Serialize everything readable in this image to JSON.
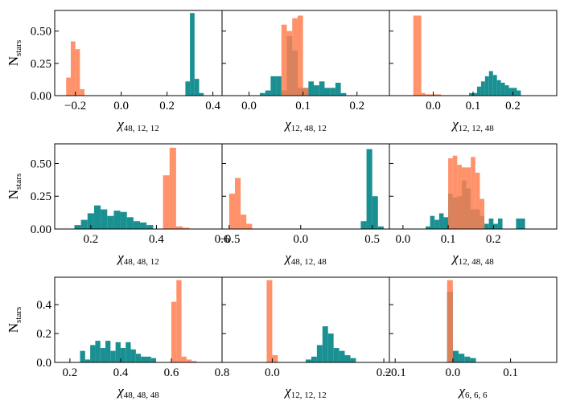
{
  "figure": {
    "ylabel": {
      "main": "N",
      "sub": "stars"
    },
    "colors": {
      "teal": "#1a9092",
      "orange": "#ff7f50"
    }
  },
  "chart_data": [
    {
      "type": "histogram",
      "id": "p00",
      "xlabel": {
        "main": "χ",
        "sub": "48, 12, 12"
      },
      "xlim": [
        -0.29,
        0.44
      ],
      "ylim": [
        0,
        0.66
      ],
      "xticks": [
        -0.2,
        0.0,
        0.2,
        0.4
      ],
      "xtick_labels": [
        "−0.2",
        "0.0",
        "0.2",
        "0.4"
      ],
      "yticks": [
        0.0,
        0.25,
        0.5
      ],
      "ytick_labels": [
        "0.00",
        "0.25",
        "0.50"
      ],
      "series": [
        {
          "name": "teal",
          "bin_edges": [
            0.28,
            0.3,
            0.32,
            0.34,
            0.36
          ],
          "values": [
            0.11,
            0.64,
            0.13,
            0.02
          ]
        },
        {
          "name": "orange",
          "bin_edges": [
            -0.24,
            -0.22,
            -0.2,
            -0.18,
            -0.16
          ],
          "values": [
            0.14,
            0.42,
            0.36,
            0.05
          ]
        }
      ]
    },
    {
      "type": "histogram",
      "id": "p01",
      "xlabel": {
        "main": "χ",
        "sub": "12, 48, 12"
      },
      "xlim": [
        -0.05,
        0.26
      ],
      "ylim": [
        0,
        0.66
      ],
      "xticks": [
        0.0,
        0.1,
        0.2
      ],
      "xtick_labels": [
        "0.0",
        "0.1",
        "0.2"
      ],
      "yticks": [
        0.0,
        0.25,
        0.5
      ],
      "ytick_labels": [
        "",
        "",
        ""
      ],
      "series": [
        {
          "name": "teal",
          "bin_edges": [
            0.02,
            0.03,
            0.04,
            0.05,
            0.06,
            0.07,
            0.08,
            0.09,
            0.1,
            0.11,
            0.12,
            0.13,
            0.14,
            0.15,
            0.16,
            0.17,
            0.18
          ],
          "values": [
            0.02,
            0.04,
            0.15,
            0.15,
            0.04,
            0.46,
            0.35,
            0.06,
            0.06,
            0.11,
            0.08,
            0.11,
            0.06,
            0.06,
            0.1,
            0.02
          ]
        },
        {
          "name": "orange",
          "bin_edges": [
            0.06,
            0.07,
            0.08,
            0.09,
            0.1,
            0.11
          ],
          "values": [
            0.55,
            0.5,
            0.6,
            0.62,
            0.06
          ]
        }
      ]
    },
    {
      "type": "histogram",
      "id": "p02",
      "xlabel": {
        "main": "χ",
        "sub": "12, 12, 48"
      },
      "xlim": [
        -0.11,
        0.31
      ],
      "ylim": [
        0,
        0.66
      ],
      "xticks": [
        0.0,
        0.1,
        0.2
      ],
      "xtick_labels": [
        "0.0",
        "0.1",
        "0.2"
      ],
      "yticks": [
        0.0,
        0.25,
        0.5
      ],
      "ytick_labels": [
        "",
        "",
        ""
      ],
      "series": [
        {
          "name": "teal",
          "bin_edges": [
            0.09,
            0.1,
            0.11,
            0.12,
            0.13,
            0.14,
            0.15,
            0.16,
            0.17,
            0.18,
            0.19,
            0.2,
            0.21,
            0.22
          ],
          "values": [
            0.02,
            0.02,
            0.07,
            0.11,
            0.15,
            0.19,
            0.16,
            0.12,
            0.1,
            0.08,
            0.06,
            0.06,
            0.04
          ]
        },
        {
          "name": "orange",
          "bin_edges": [
            -0.05,
            -0.04,
            -0.03,
            -0.02,
            -0.01,
            0.0,
            0.01,
            0.02
          ],
          "values": [
            0.62,
            0.62,
            0.02,
            0.01,
            0.01,
            0.01,
            0.01
          ]
        }
      ]
    },
    {
      "type": "histogram",
      "id": "p10",
      "xlabel": {
        "main": "χ",
        "sub": "48, 48, 12"
      },
      "xlim": [
        0.09,
        0.6
      ],
      "ylim": [
        0,
        0.65
      ],
      "xticks": [
        0.2,
        0.4,
        0.6
      ],
      "xtick_labels": [
        "0.2",
        "0.4",
        "0.6"
      ],
      "yticks": [
        0.0,
        0.25,
        0.5
      ],
      "ytick_labels": [
        "0.00",
        "0.25",
        "0.50"
      ],
      "series": [
        {
          "name": "teal",
          "bin_edges": [
            0.15,
            0.17,
            0.19,
            0.21,
            0.23,
            0.25,
            0.27,
            0.29,
            0.31,
            0.33,
            0.35,
            0.37,
            0.39
          ],
          "values": [
            0.03,
            0.07,
            0.12,
            0.18,
            0.15,
            0.1,
            0.14,
            0.13,
            0.09,
            0.06,
            0.05,
            0.03
          ]
        },
        {
          "name": "orange",
          "bin_edges": [
            0.42,
            0.44,
            0.46,
            0.48,
            0.5
          ],
          "values": [
            0.41,
            0.62,
            0.02,
            0.01
          ]
        }
      ]
    },
    {
      "type": "histogram",
      "id": "p11",
      "xlabel": {
        "main": "χ",
        "sub": "48, 12, 48"
      },
      "xlim": [
        -0.55,
        0.62
      ],
      "ylim": [
        0,
        0.65
      ],
      "xticks": [
        -0.5,
        0.0,
        0.5
      ],
      "xtick_labels": [
        "−0.5",
        "0.0",
        "0.5"
      ],
      "yticks": [
        0.0,
        0.25,
        0.5
      ],
      "ytick_labels": [
        "",
        "",
        ""
      ],
      "series": [
        {
          "name": "teal",
          "bin_edges": [
            0.42,
            0.46,
            0.5,
            0.54,
            0.58
          ],
          "values": [
            0.06,
            0.61,
            0.25,
            0.02
          ]
        },
        {
          "name": "orange",
          "bin_edges": [
            -0.5,
            -0.46,
            -0.42,
            -0.38,
            -0.34
          ],
          "values": [
            0.27,
            0.39,
            0.11,
            0.04
          ]
        }
      ]
    },
    {
      "type": "histogram",
      "id": "p12",
      "xlabel": {
        "main": "χ",
        "sub": "12, 48, 48"
      },
      "xlim": [
        -0.03,
        0.34
      ],
      "ylim": [
        0,
        0.65
      ],
      "xticks": [
        0.0,
        0.1,
        0.2
      ],
      "xtick_labels": [
        "0.0",
        "0.1",
        "0.2"
      ],
      "yticks": [
        0.0,
        0.25,
        0.5
      ],
      "ytick_labels": [
        "",
        "",
        ""
      ],
      "series": [
        {
          "name": "teal",
          "bin_edges": [
            0.05,
            0.06,
            0.07,
            0.08,
            0.09,
            0.1,
            0.11,
            0.12,
            0.13,
            0.14,
            0.15,
            0.16,
            0.17,
            0.18,
            0.19,
            0.2,
            0.21,
            0.22,
            0.23,
            0.24,
            0.25,
            0.26,
            0.27
          ],
          "values": [
            0.02,
            0.1,
            0.07,
            0.12,
            0.09,
            0.27,
            0.24,
            0.25,
            0.37,
            0.31,
            0.15,
            0.15,
            0.1,
            0.04,
            0.08,
            0.04,
            0.08,
            0.0,
            0.0,
            0.0,
            0.08,
            0.08
          ]
        },
        {
          "name": "orange",
          "bin_edges": [
            0.1,
            0.11,
            0.12,
            0.13,
            0.14,
            0.15,
            0.16,
            0.17,
            0.18
          ],
          "values": [
            0.54,
            0.56,
            0.49,
            0.47,
            0.47,
            0.55,
            0.43,
            0.23
          ]
        }
      ]
    },
    {
      "type": "histogram",
      "id": "p20",
      "xlabel": {
        "main": "χ",
        "sub": "48, 48, 48"
      },
      "xlim": [
        0.14,
        0.8
      ],
      "ylim": [
        0,
        0.59
      ],
      "xticks": [
        0.2,
        0.4,
        0.6,
        0.8
      ],
      "xtick_labels": [
        "0.2",
        "0.4",
        "0.6",
        "0.8"
      ],
      "yticks": [
        0.0,
        0.2,
        0.4
      ],
      "ytick_labels": [
        "0.0",
        "0.2",
        "0.4"
      ],
      "series": [
        {
          "name": "teal",
          "bin_edges": [
            0.24,
            0.26,
            0.28,
            0.3,
            0.32,
            0.34,
            0.36,
            0.38,
            0.4,
            0.42,
            0.44,
            0.46,
            0.48,
            0.5,
            0.52,
            0.54
          ],
          "values": [
            0.08,
            0.02,
            0.12,
            0.15,
            0.1,
            0.15,
            0.08,
            0.14,
            0.1,
            0.14,
            0.09,
            0.06,
            0.04,
            0.04,
            0.03
          ]
        },
        {
          "name": "orange",
          "bin_edges": [
            0.6,
            0.62,
            0.64,
            0.66,
            0.68,
            0.7
          ],
          "values": [
            0.42,
            0.57,
            0.04,
            0.02,
            0.01
          ]
        }
      ]
    },
    {
      "type": "histogram",
      "id": "p21",
      "xlabel": {
        "main": "χ",
        "sub": "12, 12, 12"
      },
      "xlim": [
        -0.09,
        0.21
      ],
      "ylim": [
        0,
        0.59
      ],
      "xticks": [
        0.0,
        0.2
      ],
      "xtick_labels": [
        "0.0",
        "0.2"
      ],
      "yticks": [
        0.0,
        0.2,
        0.4
      ],
      "ytick_labels": [
        "",
        "",
        ""
      ],
      "series": [
        {
          "name": "teal",
          "bin_edges": [
            0.06,
            0.07,
            0.08,
            0.09,
            0.1,
            0.11,
            0.12,
            0.13,
            0.14,
            0.15
          ],
          "values": [
            0.02,
            0.04,
            0.12,
            0.25,
            0.2,
            0.1,
            0.08,
            0.05,
            0.03
          ]
        },
        {
          "name": "orange",
          "bin_edges": [
            -0.01,
            0.0,
            0.01
          ],
          "values": [
            0.57,
            0.05
          ]
        }
      ]
    },
    {
      "type": "histogram",
      "id": "p22",
      "xlabel": {
        "main": "χ",
        "sub": "6, 6, 6"
      },
      "xlim": [
        -0.11,
        0.18
      ],
      "ylim": [
        0,
        0.59
      ],
      "xticks": [
        -0.1,
        0.0,
        0.1
      ],
      "xtick_labels": [
        "−0.1",
        "0.0",
        "0.1"
      ],
      "yticks": [
        0.0,
        0.2,
        0.4
      ],
      "ytick_labels": [
        "",
        "",
        ""
      ],
      "series": [
        {
          "name": "teal",
          "bin_edges": [
            -0.01,
            0.0,
            0.01,
            0.02,
            0.03,
            0.04
          ],
          "values": [
            0.49,
            0.08,
            0.06,
            0.04,
            0.03
          ]
        },
        {
          "name": "orange",
          "bin_edges": [
            -0.01,
            0.0
          ],
          "values": [
            0.57
          ]
        }
      ]
    }
  ]
}
